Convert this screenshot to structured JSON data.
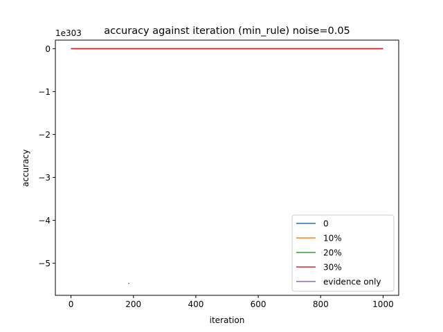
{
  "chart_data": {
    "type": "line",
    "title": "accuracy against iteration (min_rule) noise=0.05",
    "xlabel": "iteration",
    "ylabel": "accuracy",
    "y_offset_label": "1e303",
    "y_scale_factor": 1e+303,
    "xlim": [
      -50,
      1050
    ],
    "ylim": [
      -5.75,
      0.2
    ],
    "x_ticks": [
      0,
      200,
      400,
      600,
      800,
      1000
    ],
    "x_tick_labels": [
      "0",
      "200",
      "400",
      "600",
      "800",
      "1000"
    ],
    "y_ticks": [
      0,
      -1,
      -2,
      -3,
      -4,
      -5
    ],
    "y_tick_labels": [
      "0",
      "−1",
      "−2",
      "−3",
      "−4",
      "−5"
    ],
    "grid": false,
    "legend_position": "lower right",
    "series": [
      {
        "name": "0",
        "color": "#1f77b4",
        "x": [
          0,
          1000
        ],
        "y": [
          0,
          0
        ]
      },
      {
        "name": "10%",
        "color": "#ff7f0e",
        "x": [
          0,
          1000
        ],
        "y": [
          0,
          0
        ]
      },
      {
        "name": "20%",
        "color": "#2ca02c",
        "x": [
          0,
          1000
        ],
        "y": [
          0,
          0
        ]
      },
      {
        "name": "30%",
        "color": "#d62728",
        "x": [
          0,
          1000
        ],
        "y": [
          0,
          0
        ]
      },
      {
        "name": "evidence only",
        "color": "#9467bd",
        "x": [
          183,
          187
        ],
        "y": [
          -5.47,
          -5.47
        ]
      }
    ]
  }
}
